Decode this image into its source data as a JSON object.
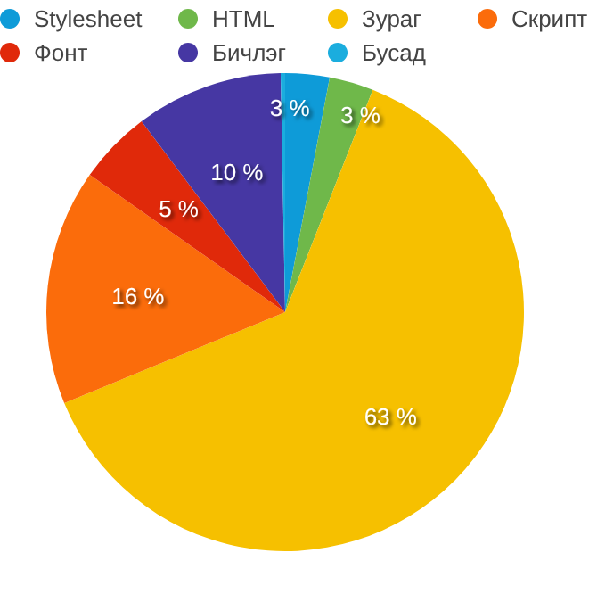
{
  "chart_data": {
    "type": "pie",
    "categories": [
      "Stylesheet",
      "HTML",
      "Зураг",
      "Скрипт",
      "Фонт",
      "Бичлэг",
      "Бусад"
    ],
    "values": [
      3,
      3,
      63,
      16,
      5,
      10,
      0.3
    ],
    "colors": [
      "#0e9bd8",
      "#6fb84a",
      "#f6c000",
      "#fb6c0b",
      "#e0290a",
      "#4637a3",
      "#1badde"
    ],
    "value_labels": [
      "3 %",
      "3 %",
      "63 %",
      "16 %",
      "5 %",
      "10 %",
      null
    ],
    "legend": "top"
  }
}
